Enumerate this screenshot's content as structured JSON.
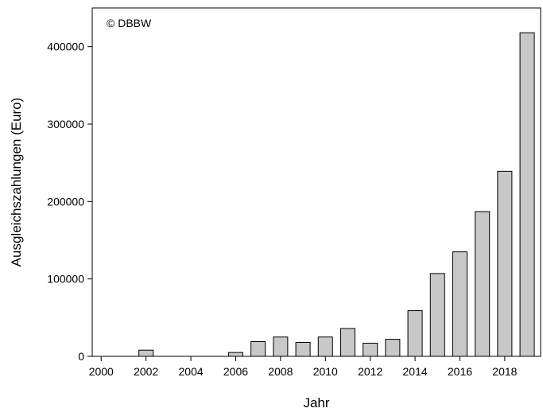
{
  "chart_data": {
    "type": "bar",
    "annotation": "© DBBW",
    "xlabel": "Jahr",
    "ylabel": "Ausgleichszahlungen (Euro)",
    "xlim": [
      1999.6,
      2019.6
    ],
    "ylim": [
      0,
      450000
    ],
    "x_ticks": [
      2000,
      2002,
      2004,
      2006,
      2008,
      2010,
      2012,
      2014,
      2016,
      2018
    ],
    "x_tick_labels": [
      "2000",
      "2002",
      "2004",
      "2006",
      "2008",
      "2010",
      "2012",
      "2014",
      "2016",
      "2018"
    ],
    "y_ticks": [
      0,
      100000,
      200000,
      300000,
      400000
    ],
    "y_tick_labels": [
      "0",
      "100000",
      "200000",
      "300000",
      "400000"
    ],
    "bar_color": "#c8c8c8",
    "x": [
      2002,
      2006,
      2007,
      2008,
      2009,
      2010,
      2011,
      2012,
      2013,
      2014,
      2015,
      2016,
      2017,
      2018,
      2019
    ],
    "values": [
      8000,
      5000,
      19000,
      25000,
      18000,
      25000,
      36000,
      17000,
      22000,
      59000,
      107000,
      135000,
      187000,
      239000,
      418000
    ],
    "grid": false
  }
}
